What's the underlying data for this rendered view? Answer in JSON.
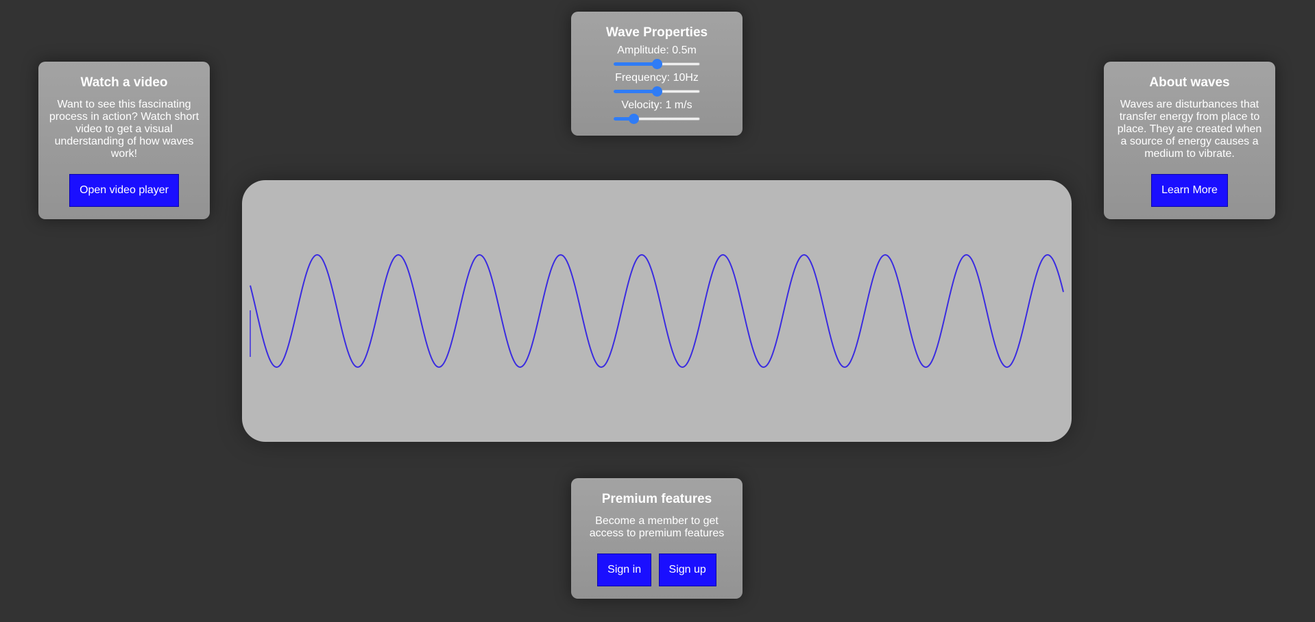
{
  "video_card": {
    "title": "Watch a video",
    "text": "Want to see this fascinating process in action? Watch short video to get a visual understanding of how waves work!",
    "button": "Open video player"
  },
  "wave_properties": {
    "title": "Wave Properties",
    "amplitude": {
      "label": "Amplitude: 0.5m",
      "value": 0.5,
      "min": 0,
      "max": 1
    },
    "frequency": {
      "label": "Frequency: 10Hz",
      "value": 10,
      "min": 0,
      "max": 20
    },
    "velocity": {
      "label": "Velocity: 1 m/s",
      "value": 1,
      "min": 0,
      "max": 5
    }
  },
  "about_card": {
    "title": "About waves",
    "text": "Waves are disturbances that transfer energy from place to place. They are created when a source of energy causes a medium to vibrate.",
    "button": "Learn More"
  },
  "premium_card": {
    "title": "Premium features",
    "text": "Become a member to get access to premium features",
    "sign_in": "Sign in",
    "sign_up": "Sign up"
  },
  "wave": {
    "cycles": 10,
    "color": "#3a2be0"
  },
  "colors": {
    "background": "#333333",
    "button": "#1a0fff",
    "slider_accent": "#2f7cf6"
  }
}
